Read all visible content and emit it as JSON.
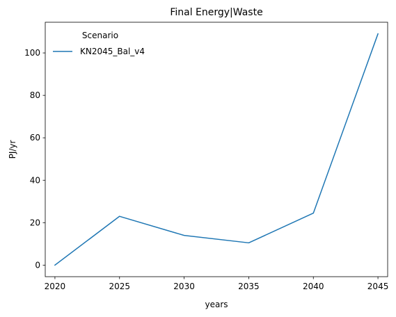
{
  "chart_data": {
    "type": "line",
    "title": "Final Energy|Waste",
    "xlabel": "years",
    "ylabel": "PJ/yr",
    "x": [
      2020,
      2025,
      2030,
      2035,
      2040,
      2045
    ],
    "x_tick_labels": [
      "2020",
      "2025",
      "2030",
      "2035",
      "2040",
      "2045"
    ],
    "y_ticks": [
      0,
      20,
      40,
      60,
      80,
      100
    ],
    "y_tick_labels": [
      "0",
      "20",
      "40",
      "60",
      "80",
      "100"
    ],
    "xlim": [
      2019.25,
      2045.75
    ],
    "ylim": [
      -5.45,
      114.45
    ],
    "grid": false,
    "legend": {
      "title": "Scenario",
      "placement": "top-left"
    },
    "series": [
      {
        "name": "KN2045_Bal_v4",
        "color": "#1f77b4",
        "values": [
          0,
          23,
          14,
          10.5,
          24.5,
          109
        ]
      }
    ]
  }
}
